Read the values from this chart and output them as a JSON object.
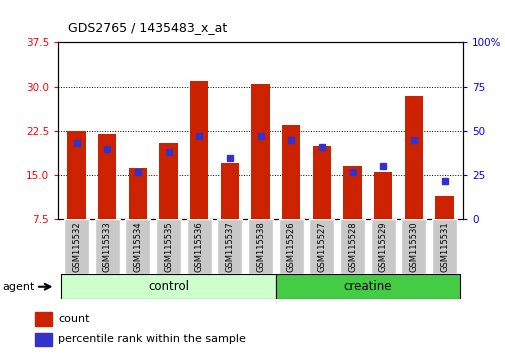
{
  "title": "GDS2765 / 1435483_x_at",
  "samples": [
    "GSM115532",
    "GSM115533",
    "GSM115534",
    "GSM115535",
    "GSM115536",
    "GSM115537",
    "GSM115538",
    "GSM115526",
    "GSM115527",
    "GSM115528",
    "GSM115529",
    "GSM115530",
    "GSM115531"
  ],
  "count_values": [
    22.5,
    22.0,
    16.2,
    20.5,
    31.0,
    17.0,
    30.5,
    23.5,
    20.0,
    16.5,
    15.5,
    28.5,
    11.5
  ],
  "percentile_values": [
    43,
    40,
    27,
    38,
    47,
    35,
    47,
    45,
    41,
    27,
    30,
    45,
    22
  ],
  "ylim_left": [
    7.5,
    37.5
  ],
  "ylim_right": [
    0,
    100
  ],
  "yticks_left": [
    7.5,
    15.0,
    22.5,
    30.0,
    37.5
  ],
  "yticks_right": [
    0,
    25,
    50,
    75,
    100
  ],
  "bar_color": "#cc2200",
  "blue_color": "#3333cc",
  "bar_width": 0.6,
  "control_bg": "#ccffcc",
  "creatine_bg": "#44cc44",
  "n_control": 7,
  "n_creatine": 6
}
